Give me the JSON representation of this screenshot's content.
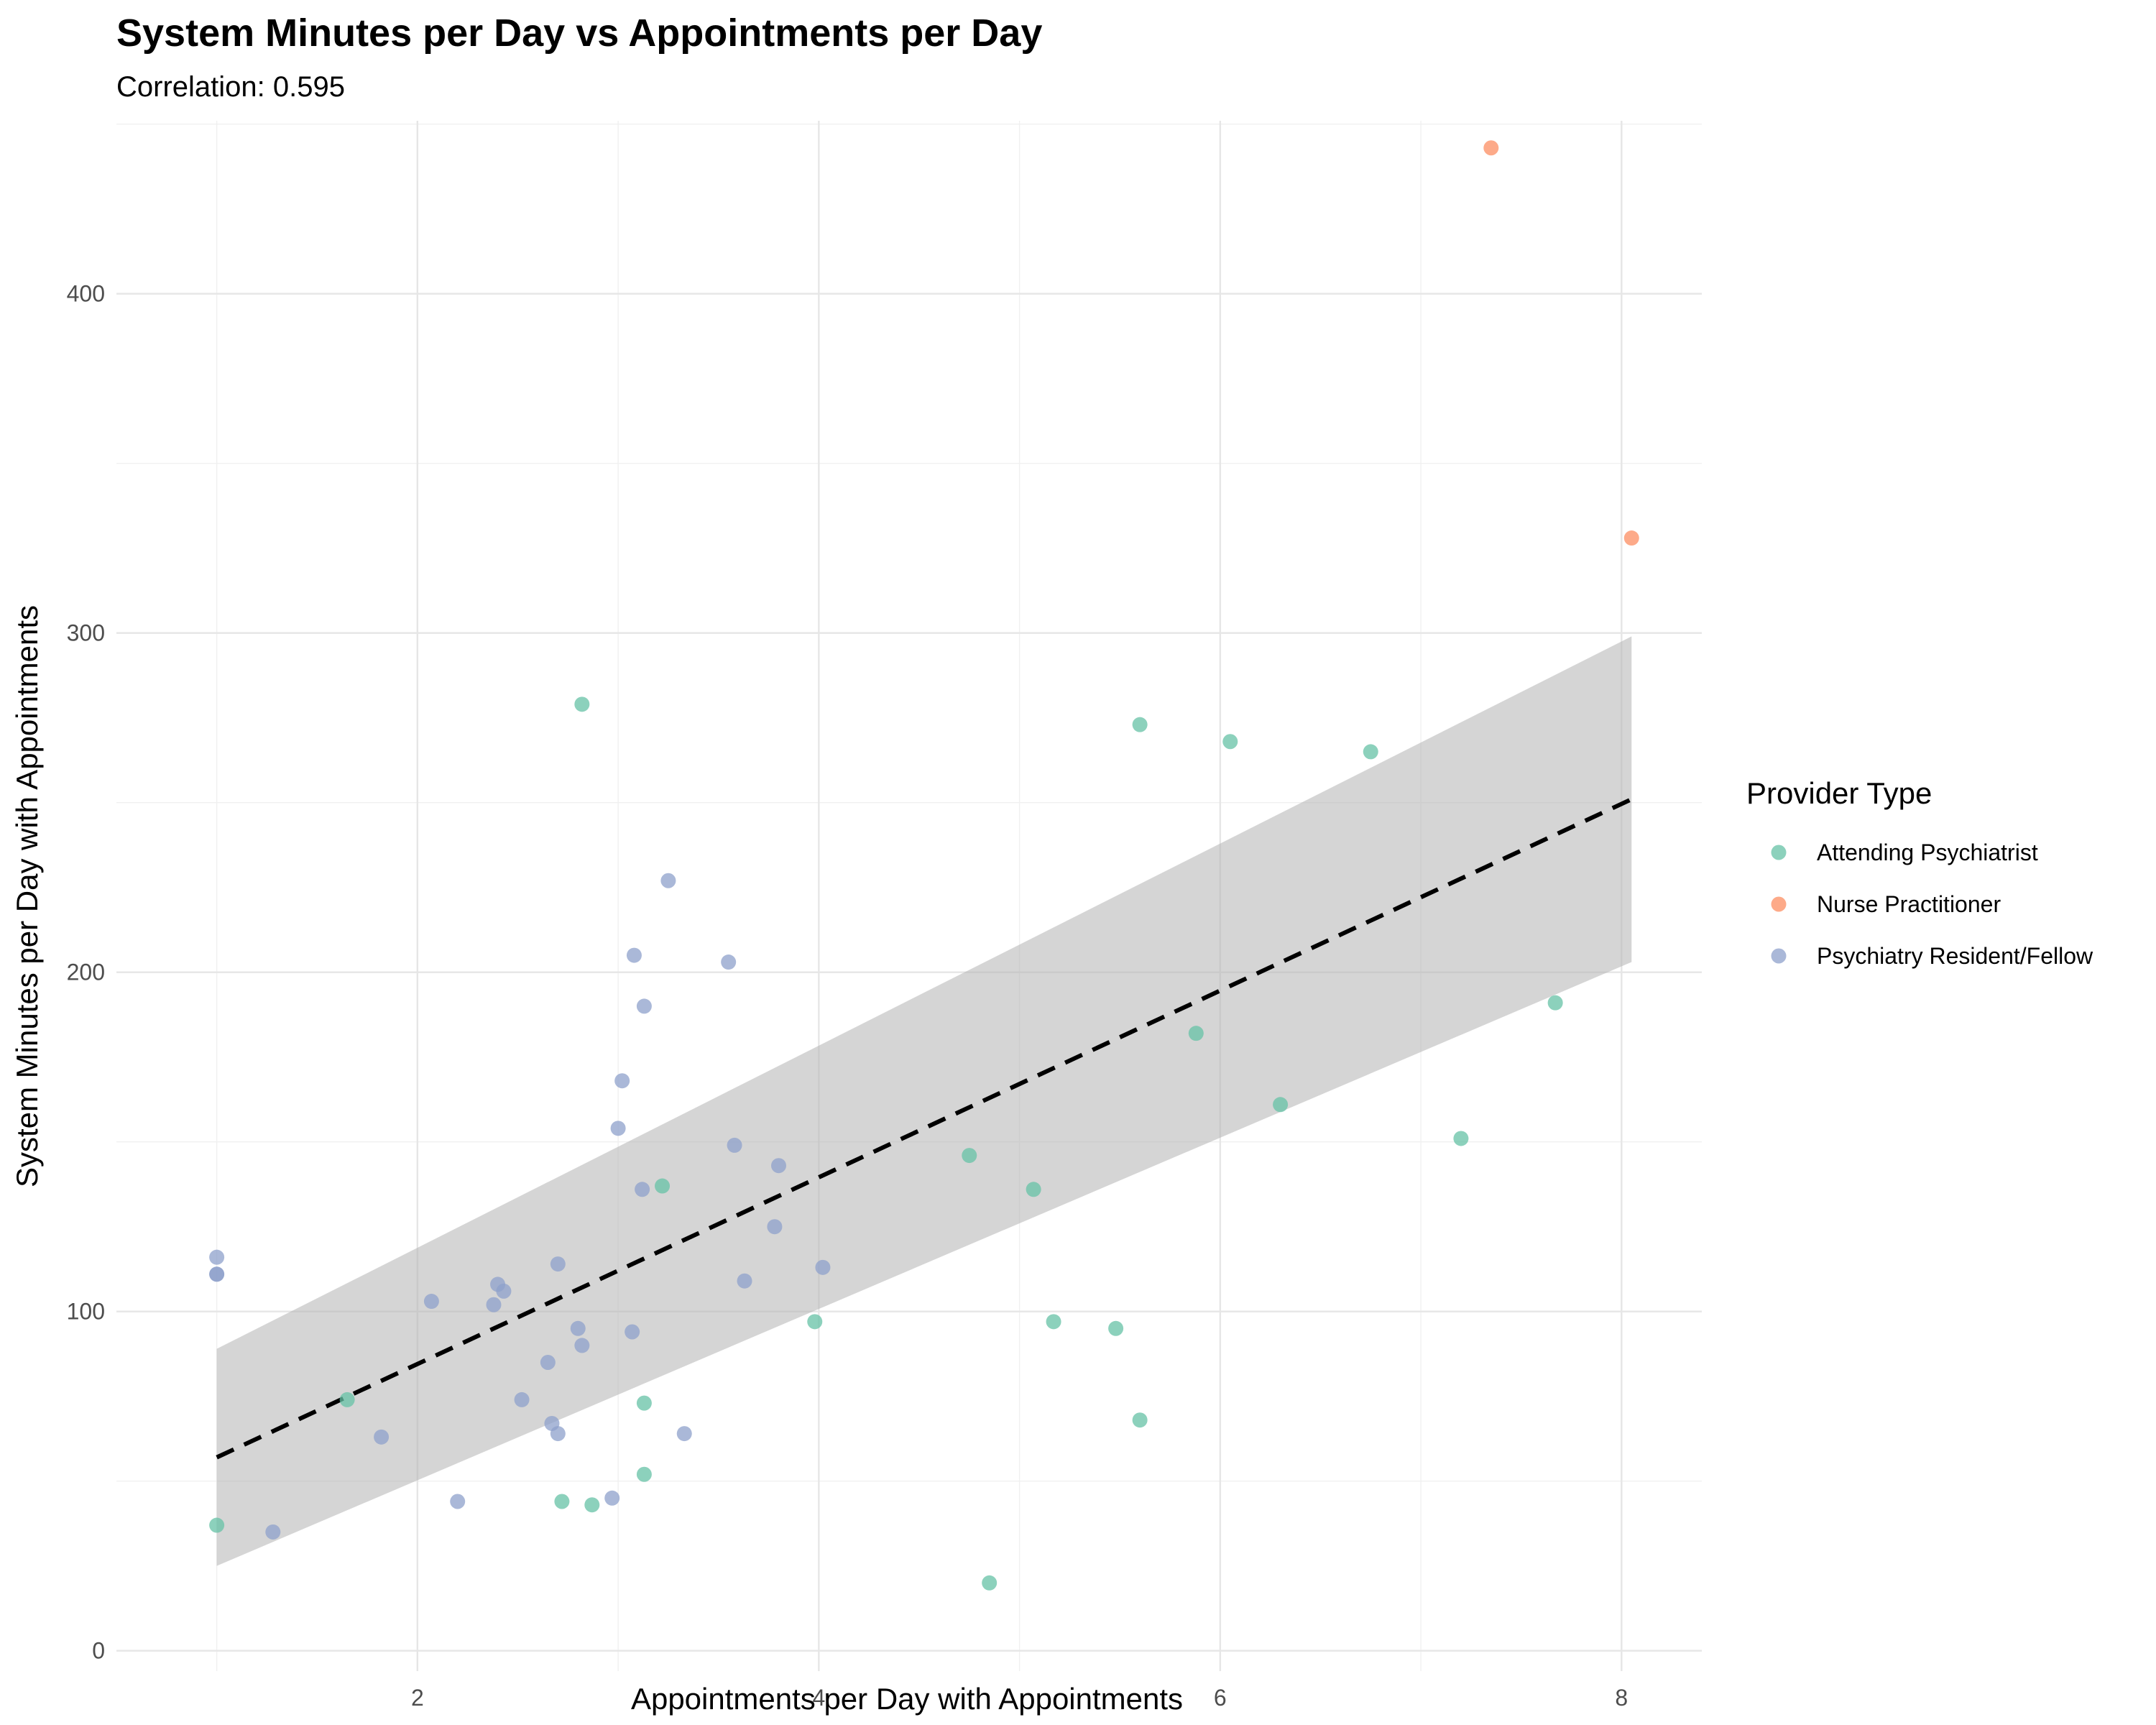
{
  "chart_data": {
    "type": "scatter",
    "title": "System Minutes per Day vs Appointments per Day",
    "subtitle": "Correlation: 0.595",
    "xlabel": "Appointments per Day with Appointments",
    "ylabel": "System Minutes per Day with Appointments",
    "xlim": [
      0.5,
      8.4
    ],
    "ylim": [
      -6,
      451
    ],
    "x_ticks": [
      2,
      4,
      6,
      8
    ],
    "y_ticks": [
      0,
      100,
      200,
      300,
      400
    ],
    "grid": true,
    "legend": {
      "title": "Provider Type",
      "placement": "right",
      "items": [
        "Attending Psychiatrist",
        "Nurse Practitioner",
        "Psychiatry Resident/Fellow"
      ]
    },
    "colors": {
      "Attending Psychiatrist": "#66c2a5",
      "Nurse Practitioner": "#fc8d62",
      "Psychiatry Resident/Fellow": "#8da0cb",
      "trend_line": "#000000",
      "ci_band": "#b3b3b3"
    },
    "trend_line": {
      "style": "dashed",
      "x": [
        1.0,
        8.05
      ],
      "y": [
        57,
        251
      ]
    },
    "confidence_band": {
      "x": [
        1.0,
        8.05
      ],
      "lower": [
        25,
        203
      ],
      "upper": [
        89,
        299
      ]
    },
    "series": [
      {
        "name": "Attending Psychiatrist",
        "points": [
          [
            1.0,
            37
          ],
          [
            1.65,
            74
          ],
          [
            2.72,
            44
          ],
          [
            2.82,
            279
          ],
          [
            2.87,
            43
          ],
          [
            3.13,
            73
          ],
          [
            3.13,
            52
          ],
          [
            3.22,
            137
          ],
          [
            3.98,
            97
          ],
          [
            4.75,
            146
          ],
          [
            4.85,
            20
          ],
          [
            5.07,
            136
          ],
          [
            5.17,
            97
          ],
          [
            5.48,
            95
          ],
          [
            5.6,
            273
          ],
          [
            5.6,
            68
          ],
          [
            5.88,
            182
          ],
          [
            6.05,
            268
          ],
          [
            6.3,
            161
          ],
          [
            6.75,
            265
          ],
          [
            7.2,
            151
          ],
          [
            7.67,
            191
          ]
        ]
      },
      {
        "name": "Nurse Practitioner",
        "points": [
          [
            7.35,
            443
          ],
          [
            8.05,
            328
          ]
        ]
      },
      {
        "name": "Psychiatry Resident/Fellow",
        "points": [
          [
            1.0,
            116
          ],
          [
            1.0,
            111
          ],
          [
            1.0,
            111
          ],
          [
            1.28,
            35
          ],
          [
            1.82,
            63
          ],
          [
            2.07,
            103
          ],
          [
            2.2,
            44
          ],
          [
            2.38,
            102
          ],
          [
            2.4,
            108
          ],
          [
            2.43,
            106
          ],
          [
            2.52,
            74
          ],
          [
            2.65,
            85
          ],
          [
            2.67,
            67
          ],
          [
            2.7,
            64
          ],
          [
            2.7,
            114
          ],
          [
            2.8,
            95
          ],
          [
            2.82,
            90
          ],
          [
            2.97,
            45
          ],
          [
            3.0,
            154
          ],
          [
            3.02,
            168
          ],
          [
            3.07,
            94
          ],
          [
            3.08,
            205
          ],
          [
            3.12,
            136
          ],
          [
            3.13,
            190
          ],
          [
            3.25,
            227
          ],
          [
            3.33,
            64
          ],
          [
            3.55,
            203
          ],
          [
            3.58,
            149
          ],
          [
            3.63,
            109
          ],
          [
            3.78,
            125
          ],
          [
            3.8,
            143
          ],
          [
            4.02,
            113
          ]
        ]
      }
    ]
  }
}
